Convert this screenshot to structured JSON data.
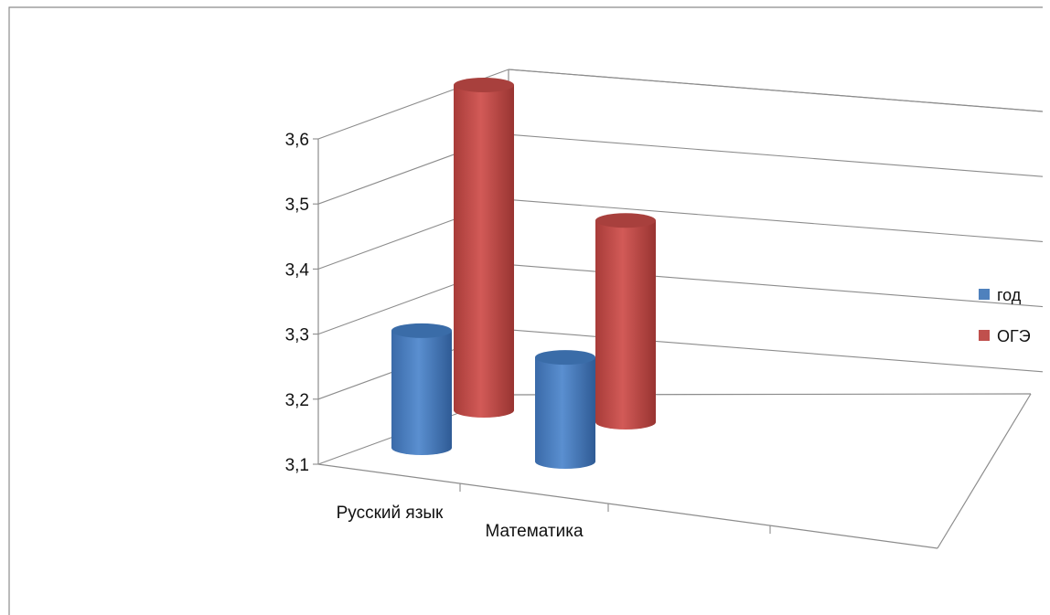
{
  "chart_data": {
    "type": "bar",
    "style": "3d-cylinder",
    "title": "",
    "categories": [
      "Русский язык",
      "Математика"
    ],
    "series": [
      {
        "name": "год",
        "values": [
          3.28,
          3.26
        ],
        "color": "#4f81bd"
      },
      {
        "name": "ОГЭ",
        "values": [
          3.6,
          3.41
        ],
        "color": "#c0504d"
      }
    ],
    "yticks": [
      "3,1",
      "3,2",
      "3,3",
      "3,4",
      "3,5",
      "3,6"
    ],
    "ylim": [
      3.1,
      3.6
    ],
    "grid": true,
    "legend": "right"
  }
}
